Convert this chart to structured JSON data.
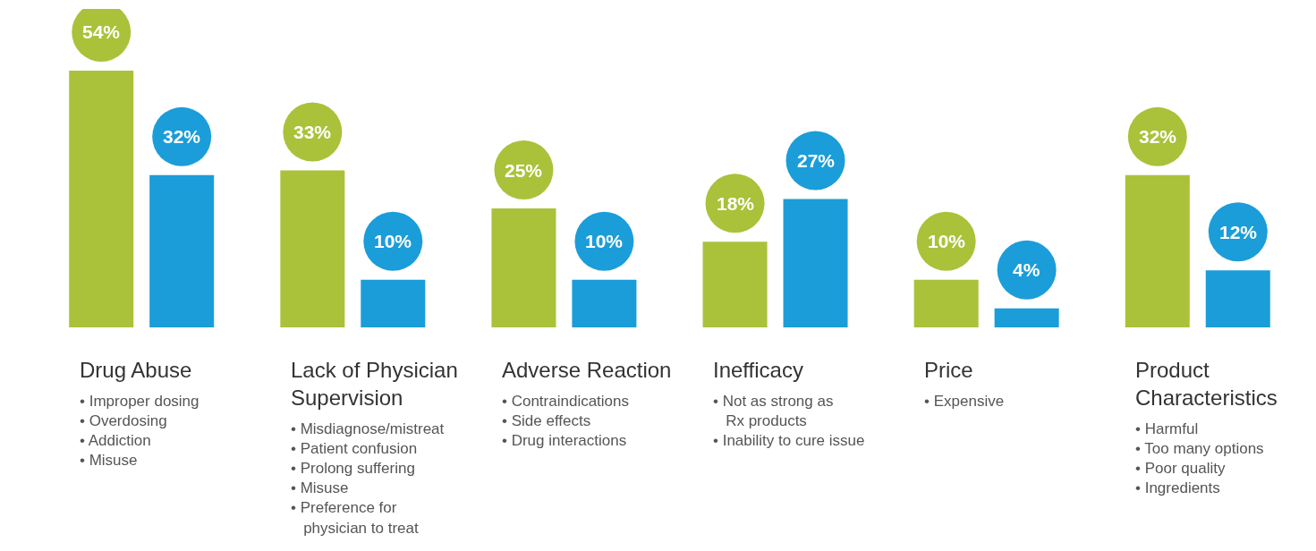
{
  "chart_data": {
    "type": "bar",
    "categories": [
      "Drug Abuse",
      "Lack of Physician\nSupervision",
      "Adverse Reaction",
      "Inefficacy",
      "Price",
      "Product\nCharacteristics"
    ],
    "series": [
      {
        "color": "#a9c23a",
        "values": [
          54,
          33,
          25,
          18,
          10,
          32
        ],
        "value_labels": [
          "54%",
          "33%",
          "25%",
          "18%",
          "10%",
          "32%"
        ]
      },
      {
        "color": "#1b9dd9",
        "values": [
          32,
          10,
          10,
          27,
          4,
          12
        ],
        "value_labels": [
          "32%",
          "10%",
          "10%",
          "27%",
          "4%",
          "12%"
        ]
      }
    ],
    "tick_labels": "x",
    "annotations": [
      "• Improper dosing\n• Overdosing\n• Addiction\n• Misuse",
      "• Misdiagnose/mistreat\n• Patient confusion\n• Prolong suffering\n• Misuse\n• Preference for\n   physician to treat",
      "• Contraindications\n• Side effects\n• Drug interactions",
      "• Not as strong as\n   Rx products\n• Inability to cure issue",
      "• Expensive",
      "• Harmful\n• Too many options\n• Poor quality\n• Ingredients"
    ]
  }
}
